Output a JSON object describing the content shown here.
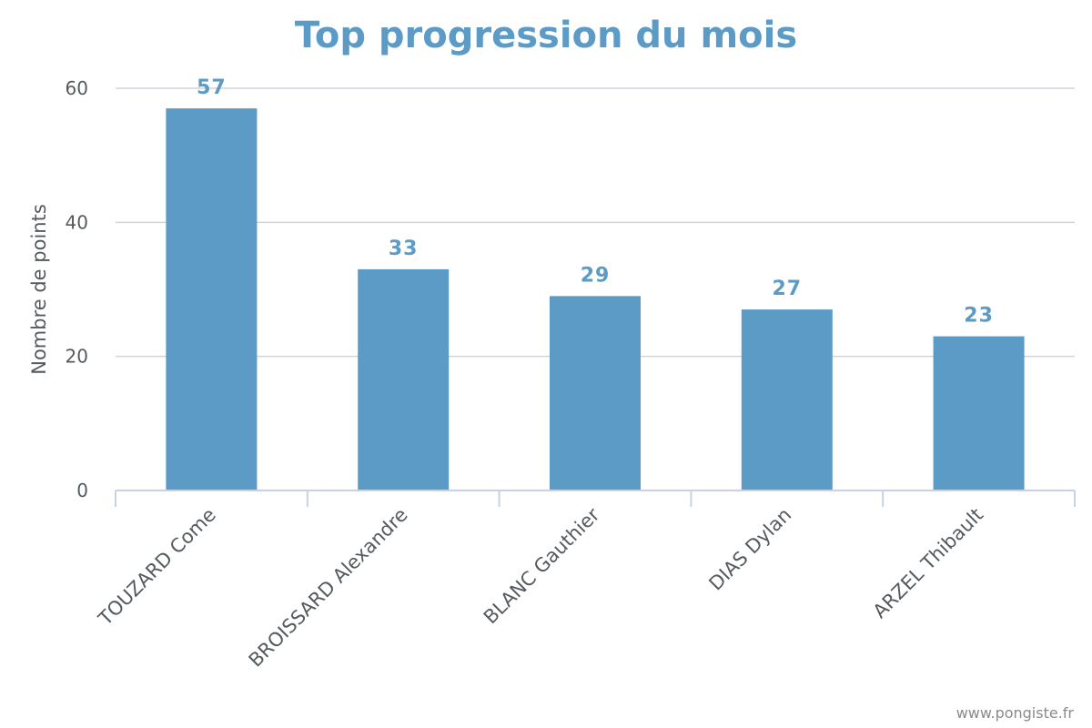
{
  "credit": "www.pongiste.fr",
  "colors": {
    "bar": "#5b9bc6",
    "title": "#5b9bc6",
    "grid": "#d0d4da",
    "axis": "#c8d2e2"
  },
  "chart_data": {
    "type": "bar",
    "title": "Top progression du mois",
    "xlabel": "",
    "ylabel": "Nombre de points",
    "categories": [
      "TOUZARD Come",
      "BROISSARD Alexandre",
      "BLANC Gauthier",
      "DIAS Dylan",
      "ARZEL Thibault"
    ],
    "values": [
      57,
      33,
      29,
      27,
      23
    ],
    "ylim": [
      0,
      60
    ],
    "yticks": [
      0,
      20,
      40,
      60
    ],
    "grid": true,
    "data_labels": true,
    "legend": "none"
  }
}
